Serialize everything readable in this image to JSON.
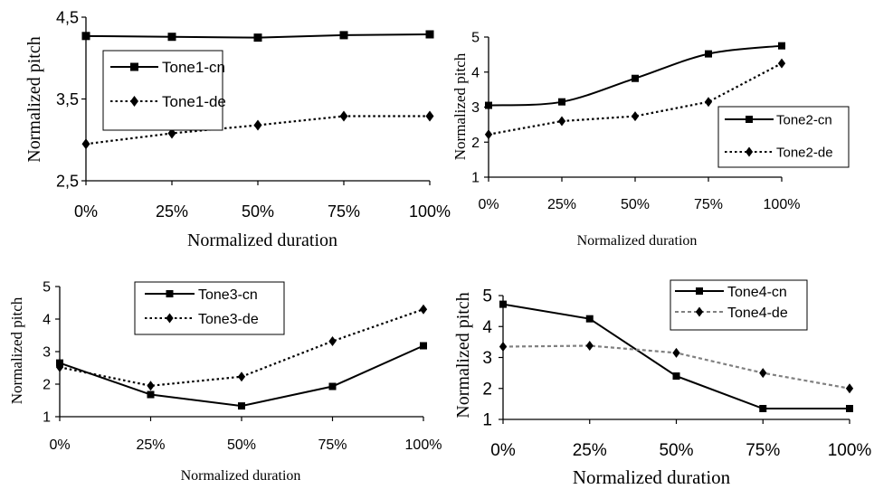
{
  "chart_data": [
    {
      "type": "line",
      "categories": [
        "0%",
        "25%",
        "50%",
        "75%",
        "100%"
      ],
      "ylabel": "Normalized pitch",
      "xlabel": "Normalized duration",
      "ylim": [
        2.5,
        4.5
      ],
      "yticks": [
        "2,5",
        "3,5",
        "4,5"
      ],
      "yticks_values": [
        2.5,
        3.5,
        4.5
      ],
      "legend_position": "top-left",
      "series": [
        {
          "name": "Tone1-cn",
          "values": [
            4.27,
            4.26,
            4.25,
            4.28,
            4.29
          ],
          "style": "solid",
          "marker": "square",
          "color": "#000000"
        },
        {
          "name": "Tone1-de",
          "values": [
            2.95,
            3.08,
            3.18,
            3.29,
            3.29
          ],
          "style": "dotted",
          "marker": "diamond",
          "color": "#000000"
        }
      ]
    },
    {
      "type": "line",
      "categories": [
        "0%",
        "25%",
        "50%",
        "75%",
        "100%"
      ],
      "ylabel": "Normalized pitch",
      "xlabel": "Normalized duration",
      "ylim": [
        1,
        5
      ],
      "yticks": [
        "1",
        "2",
        "3",
        "4",
        "5"
      ],
      "yticks_values": [
        1,
        2,
        3,
        4,
        5
      ],
      "legend_position": "bottom-right",
      "series": [
        {
          "name": "Tone2-cn",
          "values": [
            3.05,
            3.15,
            3.82,
            4.52,
            4.75
          ],
          "style": "solid",
          "marker": "square",
          "color": "#000000"
        },
        {
          "name": "Tone2-de",
          "values": [
            2.22,
            2.6,
            2.74,
            3.15,
            4.25
          ],
          "style": "dotted",
          "marker": "diamond",
          "color": "#000000"
        }
      ]
    },
    {
      "type": "line",
      "categories": [
        "0%",
        "25%",
        "50%",
        "75%",
        "100%"
      ],
      "ylabel": "Normalized pitch",
      "xlabel": "Normalized duration",
      "ylim": [
        1,
        5
      ],
      "yticks": [
        "1",
        "2",
        "3",
        "4",
        "5"
      ],
      "yticks_values": [
        1,
        2,
        3,
        4,
        5
      ],
      "legend_position": "top-center",
      "series": [
        {
          "name": "Tone3-cn",
          "values": [
            2.65,
            1.68,
            1.33,
            1.93,
            3.18
          ],
          "style": "solid",
          "marker": "square",
          "color": "#000000"
        },
        {
          "name": "Tone3-de",
          "values": [
            2.52,
            1.95,
            2.23,
            3.32,
            4.3
          ],
          "style": "dotted",
          "marker": "diamond",
          "color": "#000000"
        }
      ]
    },
    {
      "type": "line",
      "categories": [
        "0%",
        "25%",
        "50%",
        "75%",
        "100%"
      ],
      "ylabel": "Normalized pitch",
      "xlabel": "Normalized duration",
      "ylim": [
        1,
        5
      ],
      "yticks": [
        "1",
        "2",
        "3",
        "4",
        "5"
      ],
      "yticks_values": [
        1,
        2,
        3,
        4,
        5
      ],
      "legend_position": "top-right",
      "series": [
        {
          "name": "Tone4-cn",
          "values": [
            4.72,
            4.25,
            2.4,
            1.35,
            1.35
          ],
          "style": "solid",
          "marker": "square",
          "color": "#000000"
        },
        {
          "name": "Tone4-de",
          "values": [
            3.35,
            3.38,
            3.15,
            2.5,
            2.0
          ],
          "style": "dashed",
          "marker": "diamond",
          "color": "#808080"
        }
      ]
    }
  ]
}
